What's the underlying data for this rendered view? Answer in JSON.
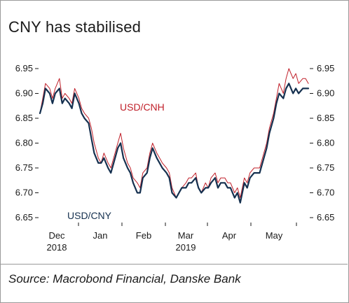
{
  "title": "CNY has stabilised",
  "source": "Source: Macrobond Financial, Danske Bank",
  "chart_data": {
    "type": "line",
    "title": "CNY has stabilised",
    "ylim": [
      6.65,
      6.95
    ],
    "yticks": [
      "6.95",
      "6.90",
      "6.85",
      "6.80",
      "6.75",
      "6.70",
      "6.65"
    ],
    "grid": false,
    "x_ticks": [
      {
        "label": "Dec",
        "sub": "2018"
      },
      {
        "label": "Jan",
        "sub": ""
      },
      {
        "label": "Feb",
        "sub": ""
      },
      {
        "label": "Mar",
        "sub": "2019"
      },
      {
        "label": "Apr",
        "sub": ""
      },
      {
        "label": "May",
        "sub": ""
      }
    ],
    "x_range": [
      "2018-11-19",
      "2019-05-31"
    ],
    "series": [
      {
        "name": "USD/CNH",
        "color": "#c0202a",
        "x": [
          "2018-11-19",
          "2018-11-21",
          "2018-11-23",
          "2018-11-26",
          "2018-11-28",
          "2018-11-30",
          "2018-12-03",
          "2018-12-05",
          "2018-12-07",
          "2018-12-10",
          "2018-12-12",
          "2018-12-14",
          "2018-12-17",
          "2018-12-19",
          "2018-12-21",
          "2018-12-24",
          "2018-12-26",
          "2018-12-28",
          "2018-12-31",
          "2019-01-02",
          "2019-01-04",
          "2019-01-07",
          "2019-01-09",
          "2019-01-11",
          "2019-01-14",
          "2019-01-16",
          "2019-01-18",
          "2019-01-21",
          "2019-01-23",
          "2019-01-25",
          "2019-01-28",
          "2019-01-30",
          "2019-02-01",
          "2019-02-04",
          "2019-02-06",
          "2019-02-08",
          "2019-02-11",
          "2019-02-13",
          "2019-02-15",
          "2019-02-18",
          "2019-02-20",
          "2019-02-22",
          "2019-02-25",
          "2019-02-27",
          "2019-03-01",
          "2019-03-04",
          "2019-03-06",
          "2019-03-08",
          "2019-03-11",
          "2019-03-13",
          "2019-03-15",
          "2019-03-18",
          "2019-03-20",
          "2019-03-22",
          "2019-03-25",
          "2019-03-27",
          "2019-03-29",
          "2019-04-01",
          "2019-04-03",
          "2019-04-05",
          "2019-04-08",
          "2019-04-10",
          "2019-04-12",
          "2019-04-15",
          "2019-04-17",
          "2019-04-19",
          "2019-04-22",
          "2019-04-24",
          "2019-04-26",
          "2019-04-29",
          "2019-05-01",
          "2019-05-03",
          "2019-05-06",
          "2019-05-08",
          "2019-05-10",
          "2019-05-13",
          "2019-05-15",
          "2019-05-17",
          "2019-05-20",
          "2019-05-22",
          "2019-05-24",
          "2019-05-27",
          "2019-05-29",
          "2019-05-31"
        ],
        "values": [
          6.86,
          6.89,
          6.92,
          6.91,
          6.89,
          6.91,
          6.93,
          6.89,
          6.9,
          6.89,
          6.88,
          6.91,
          6.89,
          6.87,
          6.86,
          6.85,
          6.83,
          6.8,
          6.77,
          6.76,
          6.78,
          6.76,
          6.75,
          6.77,
          6.8,
          6.82,
          6.79,
          6.76,
          6.75,
          6.73,
          6.72,
          6.71,
          6.74,
          6.75,
          6.78,
          6.8,
          6.78,
          6.77,
          6.76,
          6.75,
          6.74,
          6.71,
          6.69,
          6.7,
          6.71,
          6.72,
          6.73,
          6.73,
          6.74,
          6.71,
          6.7,
          6.72,
          6.71,
          6.73,
          6.74,
          6.72,
          6.73,
          6.73,
          6.72,
          6.72,
          6.7,
          6.71,
          6.69,
          6.73,
          6.72,
          6.74,
          6.75,
          6.75,
          6.75,
          6.78,
          6.8,
          6.83,
          6.86,
          6.89,
          6.92,
          6.9,
          6.93,
          6.95,
          6.93,
          6.94,
          6.92,
          6.93,
          6.93,
          6.92
        ]
      },
      {
        "name": "USD/CNY",
        "color": "#15304f",
        "x": [
          "2018-11-19",
          "2018-11-21",
          "2018-11-23",
          "2018-11-26",
          "2018-11-28",
          "2018-11-30",
          "2018-12-03",
          "2018-12-05",
          "2018-12-07",
          "2018-12-10",
          "2018-12-12",
          "2018-12-14",
          "2018-12-17",
          "2018-12-19",
          "2018-12-21",
          "2018-12-24",
          "2018-12-26",
          "2018-12-28",
          "2018-12-31",
          "2019-01-02",
          "2019-01-04",
          "2019-01-07",
          "2019-01-09",
          "2019-01-11",
          "2019-01-14",
          "2019-01-16",
          "2019-01-18",
          "2019-01-21",
          "2019-01-23",
          "2019-01-25",
          "2019-01-28",
          "2019-01-30",
          "2019-02-01",
          "2019-02-04",
          "2019-02-06",
          "2019-02-08",
          "2019-02-11",
          "2019-02-13",
          "2019-02-15",
          "2019-02-18",
          "2019-02-20",
          "2019-02-22",
          "2019-02-25",
          "2019-02-27",
          "2019-03-01",
          "2019-03-04",
          "2019-03-06",
          "2019-03-08",
          "2019-03-11",
          "2019-03-13",
          "2019-03-15",
          "2019-03-18",
          "2019-03-20",
          "2019-03-22",
          "2019-03-25",
          "2019-03-27",
          "2019-03-29",
          "2019-04-01",
          "2019-04-03",
          "2019-04-05",
          "2019-04-08",
          "2019-04-10",
          "2019-04-12",
          "2019-04-15",
          "2019-04-17",
          "2019-04-19",
          "2019-04-22",
          "2019-04-24",
          "2019-04-26",
          "2019-04-29",
          "2019-05-01",
          "2019-05-03",
          "2019-05-06",
          "2019-05-08",
          "2019-05-10",
          "2019-05-13",
          "2019-05-15",
          "2019-05-17",
          "2019-05-20",
          "2019-05-22",
          "2019-05-24",
          "2019-05-27",
          "2019-05-29",
          "2019-05-31"
        ],
        "values": [
          6.86,
          6.88,
          6.91,
          6.9,
          6.88,
          6.9,
          6.91,
          6.88,
          6.89,
          6.88,
          6.87,
          6.9,
          6.88,
          6.86,
          6.85,
          6.84,
          6.81,
          6.78,
          6.76,
          6.76,
          6.77,
          6.75,
          6.74,
          6.76,
          6.79,
          6.8,
          6.77,
          6.75,
          6.74,
          6.72,
          6.7,
          6.7,
          6.73,
          6.74,
          6.77,
          6.79,
          6.77,
          6.76,
          6.75,
          6.74,
          6.73,
          6.7,
          6.69,
          6.7,
          6.71,
          6.71,
          6.72,
          6.72,
          6.73,
          6.71,
          6.7,
          6.71,
          6.71,
          6.72,
          6.73,
          6.71,
          6.72,
          6.72,
          6.71,
          6.71,
          6.69,
          6.7,
          6.68,
          6.72,
          6.71,
          6.73,
          6.74,
          6.74,
          6.74,
          6.77,
          6.79,
          6.82,
          6.85,
          6.88,
          6.9,
          6.89,
          6.91,
          6.92,
          6.9,
          6.91,
          6.9,
          6.91,
          6.91,
          6.91
        ]
      }
    ]
  }
}
